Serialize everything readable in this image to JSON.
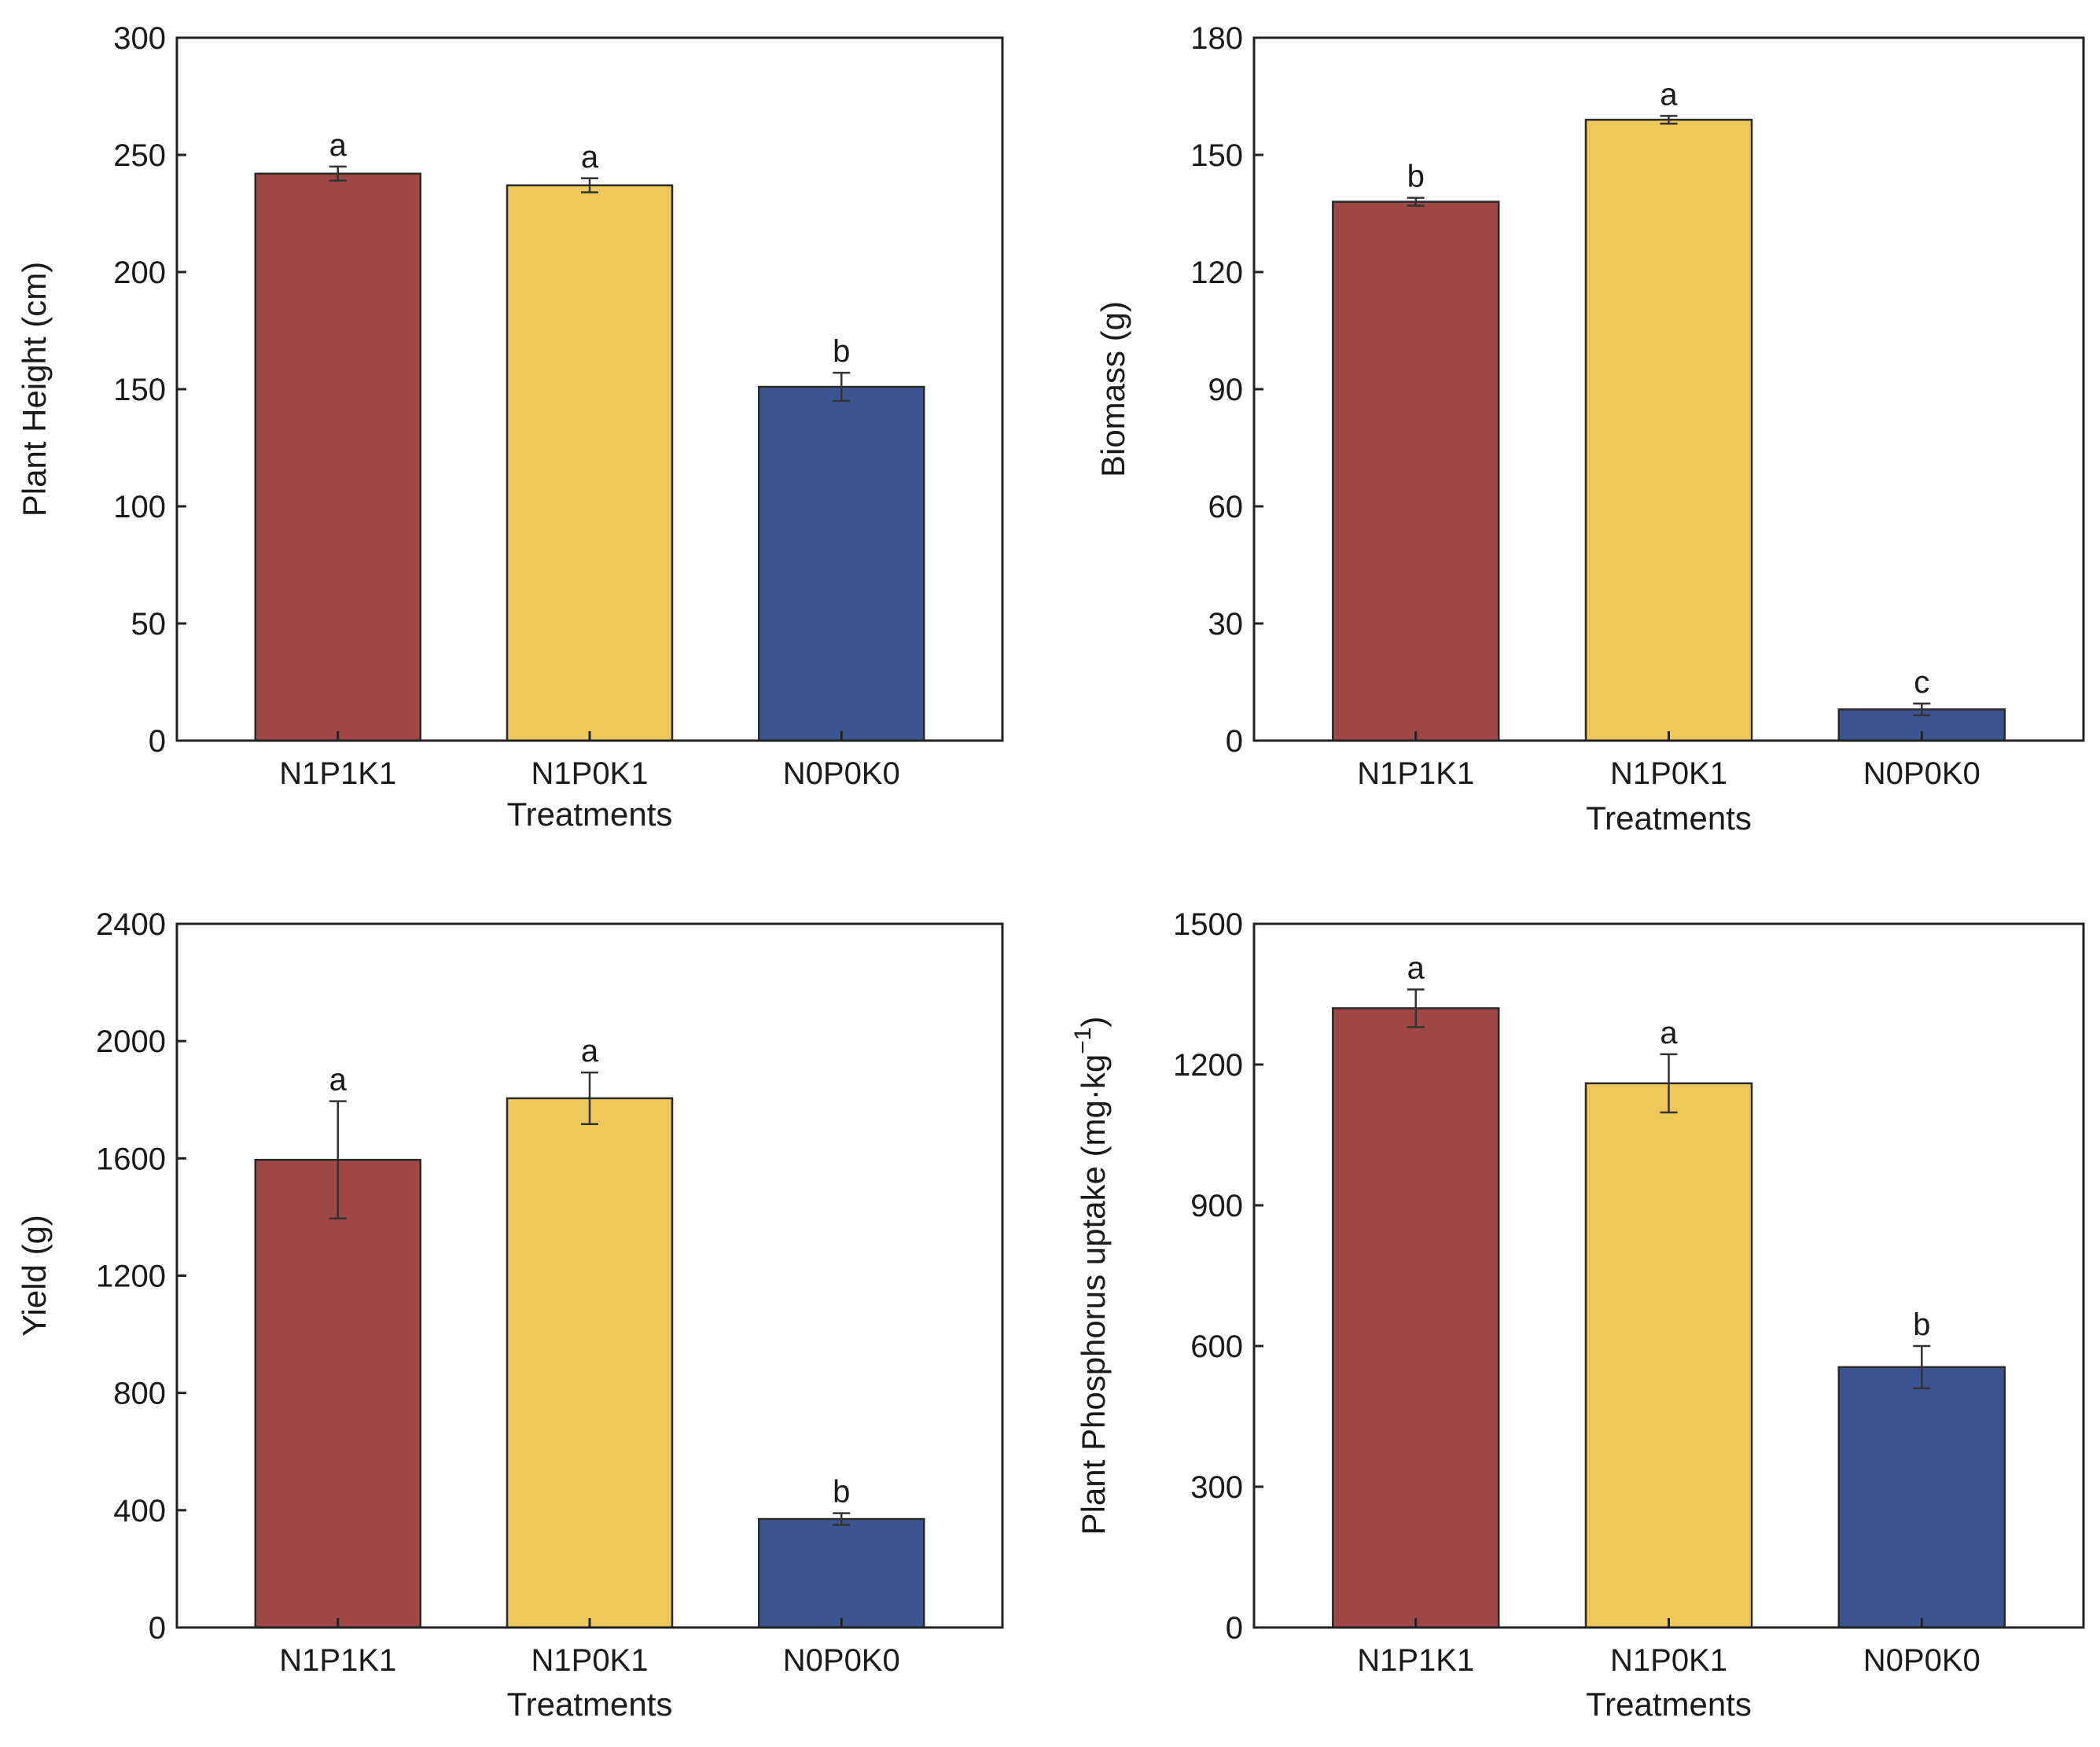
{
  "chart_data": [
    {
      "type": "bar",
      "categories": [
        "N1P1K1",
        "N1P0K1",
        "N0P0K0"
      ],
      "values": [
        242,
        237,
        151
      ],
      "errors": [
        3,
        3,
        6
      ],
      "letters": [
        "a",
        "a",
        "b"
      ],
      "colors": [
        "#9e4744",
        "#ecc95a",
        "#3b5590"
      ],
      "xlabel": "Treatments",
      "ylabel": "Plant Height (cm)",
      "ylim": [
        0,
        300
      ],
      "yticks": [
        0,
        50,
        100,
        150,
        200,
        250,
        300
      ],
      "ytick_labels": [
        "0",
        "50",
        "100",
        "150",
        "200",
        "250",
        "300"
      ],
      "grid": false
    },
    {
      "type": "bar",
      "categories": [
        "N1P1K1",
        "N1P0K1",
        "N0P0K0"
      ],
      "values": [
        138,
        159,
        8
      ],
      "errors": [
        1,
        1,
        1.5
      ],
      "letters": [
        "b",
        "a",
        "c"
      ],
      "colors": [
        "#9e4744",
        "#ecc95a",
        "#3b5590"
      ],
      "xlabel": "Treatments",
      "ylabel": "Biomass (g)",
      "ylim": [
        0,
        180
      ],
      "yticks": [
        0,
        30,
        60,
        90,
        120,
        150,
        180
      ],
      "ytick_labels": [
        "0",
        "30",
        "60",
        "90",
        "120",
        "150",
        "180"
      ],
      "grid": false
    },
    {
      "type": "bar",
      "categories": [
        "N1P1K1",
        "N1P0K1",
        "N0P0K0"
      ],
      "values": [
        1595,
        1805,
        370
      ],
      "errors": [
        200,
        88,
        20
      ],
      "letters": [
        "a",
        "a",
        "b"
      ],
      "colors": [
        "#9e4744",
        "#ecc95a",
        "#3b5590"
      ],
      "xlabel": "Treatments",
      "ylabel": "Yield (g)",
      "ylim": [
        0,
        2400
      ],
      "yticks": [
        0,
        400,
        800,
        1200,
        1600,
        2000,
        2400
      ],
      "ytick_labels": [
        "0",
        "400",
        "800",
        "1200",
        "1600",
        "2000",
        "2400"
      ],
      "grid": false
    },
    {
      "type": "bar",
      "categories": [
        "N1P1K1",
        "N1P0K1",
        "N0P0K0"
      ],
      "values": [
        1320,
        1160,
        555
      ],
      "errors": [
        40,
        62,
        45
      ],
      "letters": [
        "a",
        "a",
        "b"
      ],
      "colors": [
        "#9e4744",
        "#ecc95a",
        "#3b5590"
      ],
      "xlabel": "Treatments",
      "ylabel": "Plant Phosphorus uptake (mg·kg",
      "ylabel_superscript": "−1",
      "ylabel_suffix": ")",
      "ylim": [
        0,
        1500
      ],
      "yticks": [
        0,
        300,
        600,
        900,
        1200,
        1500
      ],
      "ytick_labels": [
        "0",
        "300",
        "600",
        "900",
        "1200",
        "1500"
      ],
      "grid": false
    }
  ]
}
